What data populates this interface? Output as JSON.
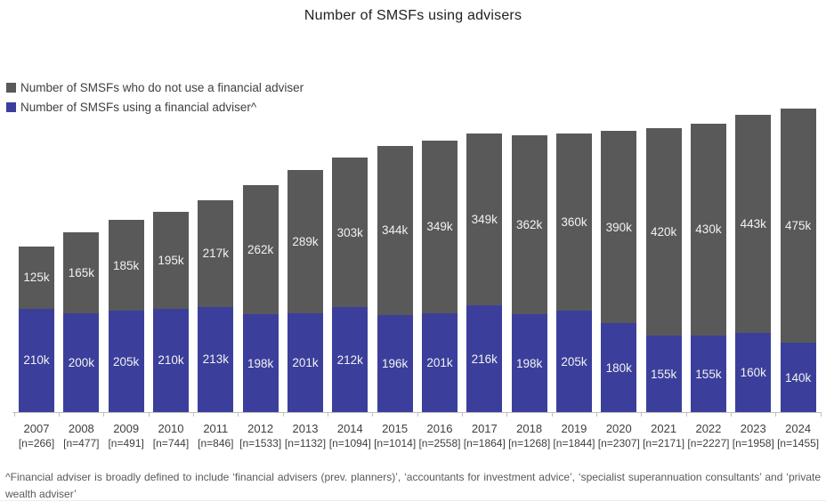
{
  "footnote": "^Financial adviser is broadly defined to include ‘financial advisers (prev. planners)’, ‘accountants for investment advice’, ‘specialist superannuation consultants’ and ‘private wealth adviser’",
  "chart_data": {
    "type": "bar",
    "stacked": true,
    "title": "Number of SMSFs using advisers",
    "categories": [
      "2007",
      "2008",
      "2009",
      "2010",
      "2011",
      "2012",
      "2013",
      "2014",
      "2015",
      "2016",
      "2017",
      "2018",
      "2019",
      "2020",
      "2021",
      "2022",
      "2023",
      "2024"
    ],
    "sample_sizes": [
      "[n=266]",
      "[n=477]",
      "[n=491]",
      "[n=744]",
      "[n=846]",
      "[n=1533]",
      "[n=1132]",
      "[n=1094]",
      "[n=1014]",
      "[n=2558]",
      "[n=1864]",
      "[n=1268]",
      "[n=1844]",
      "[n=2307]",
      "[n=2171]",
      "[n=2227]",
      "[n=1958]",
      "[n=1455]"
    ],
    "series": [
      {
        "name": "Number of SMSFs who do not use a financial adviser",
        "color": "#595959",
        "stack_position": "top",
        "values": [
          125,
          165,
          185,
          195,
          217,
          262,
          289,
          303,
          344,
          349,
          349,
          362,
          360,
          390,
          420,
          430,
          443,
          475
        ]
      },
      {
        "name": "Number of SMSFs using a financial adviser^",
        "color": "#3b3f9b",
        "stack_position": "bottom",
        "values": [
          210,
          200,
          205,
          210,
          213,
          198,
          201,
          212,
          196,
          201,
          216,
          198,
          205,
          180,
          155,
          155,
          160,
          140
        ]
      }
    ],
    "value_suffix": "k",
    "unit": "thousands of SMSFs",
    "legend_position": "top-left",
    "grid": false,
    "y_axis_visible": false,
    "ylim": [
      0,
      620
    ]
  }
}
